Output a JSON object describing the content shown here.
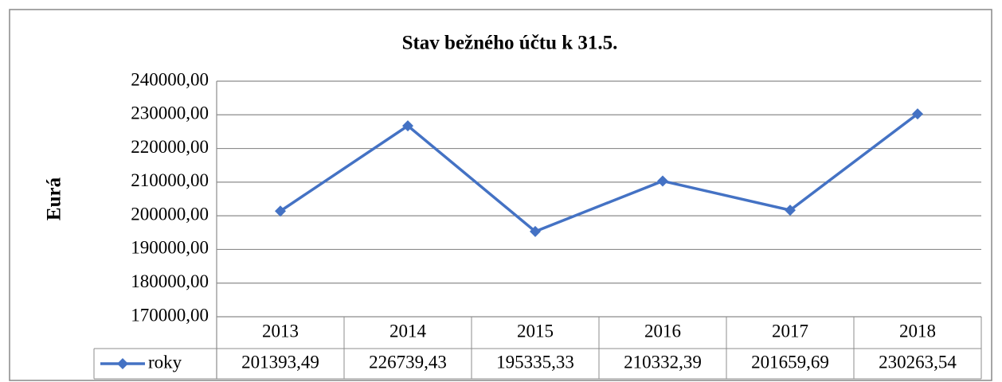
{
  "chart_data": {
    "type": "line",
    "title": "Stav bežného účtu k 31.5.",
    "y_label": "Eurá",
    "categories": [
      "2013",
      "2014",
      "2015",
      "2016",
      "2017",
      "2018"
    ],
    "series": [
      {
        "name": "roky",
        "color": "#4472c4",
        "values": [
          201393.49,
          226739.43,
          195335.33,
          210332.39,
          201659.69,
          230263.54
        ],
        "value_labels": [
          "201393,49",
          "226739,43",
          "195335,33",
          "210332,39",
          "201659,69",
          "230263,54"
        ]
      }
    ],
    "ylim": [
      170000,
      240000
    ],
    "yticks": [
      {
        "value": 170000,
        "label": "170000,00"
      },
      {
        "value": 180000,
        "label": "180000,00"
      },
      {
        "value": 190000,
        "label": "190000,00"
      },
      {
        "value": 200000,
        "label": "200000,00"
      },
      {
        "value": 210000,
        "label": "210000,00"
      },
      {
        "value": 220000,
        "label": "220000,00"
      },
      {
        "value": 230000,
        "label": "230000,00"
      },
      {
        "value": 240000,
        "label": "240000,00"
      }
    ],
    "grid": true,
    "data_table": true
  }
}
